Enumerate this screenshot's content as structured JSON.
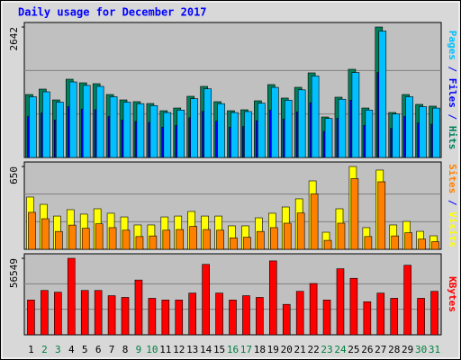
{
  "title": "Daily usage for December 2017",
  "legend_separator": " / ",
  "chart_data": [
    {
      "type": "bar",
      "ylim": [
        0,
        2642
      ],
      "yticks": [
        2642
      ],
      "series": [
        {
          "name": "Hits",
          "color": "#00805c",
          "values": [
            1275,
            1385,
            1166,
            1585,
            1512,
            1494,
            1275,
            1166,
            1130,
            1093,
            947,
            1002,
            1239,
            1439,
            1130,
            947,
            966,
            1148,
            1476,
            1203,
            1421,
            1713,
            820,
            1221,
            1786,
            1002,
            2642,
            911,
            1275,
            1075,
            1039
          ]
        },
        {
          "name": "Files",
          "color": "#0000ff",
          "values": [
            830,
            900,
            760,
            1030,
            980,
            970,
            830,
            760,
            730,
            710,
            615,
            650,
            805,
            935,
            735,
            615,
            630,
            745,
            960,
            780,
            925,
            1110,
            530,
            795,
            1160,
            650,
            1720,
            590,
            830,
            700,
            675
          ]
        },
        {
          "name": "Pages",
          "color": "#00c0ff",
          "values": [
            1230,
            1330,
            1120,
            1530,
            1460,
            1440,
            1230,
            1120,
            1090,
            1050,
            910,
            960,
            1190,
            1390,
            1090,
            910,
            930,
            1100,
            1420,
            1160,
            1370,
            1650,
            790,
            1180,
            1720,
            960,
            2560,
            880,
            1230,
            1030,
            1000
          ]
        }
      ]
    },
    {
      "type": "bar",
      "ylim": [
        0,
        650
      ],
      "yticks": [
        650
      ],
      "series": [
        {
          "name": "Visits",
          "color": "#ffff00",
          "values": [
            410,
            353,
            261,
            311,
            276,
            318,
            283,
            254,
            191,
            191,
            254,
            261,
            297,
            261,
            261,
            184,
            184,
            247,
            283,
            332,
            396,
            537,
            134,
            318,
            650,
            170,
            622,
            191,
            219,
            141,
            106
          ]
        },
        {
          "name": "Sites",
          "color": "#ff8000",
          "values": [
            290,
            240,
            140,
            190,
            165,
            200,
            170,
            150,
            100,
            105,
            150,
            155,
            180,
            155,
            150,
            90,
            95,
            140,
            170,
            205,
            285,
            435,
            70,
            205,
            555,
            100,
            530,
            105,
            130,
            80,
            60
          ]
        }
      ]
    },
    {
      "type": "bar",
      "ylim": [
        0,
        56549
      ],
      "yticks": [
        56549
      ],
      "categories": [
        "1",
        "2",
        "3",
        "4",
        "5",
        "6",
        "7",
        "8",
        "9",
        "10",
        "11",
        "12",
        "13",
        "14",
        "15",
        "16",
        "17",
        "18",
        "19",
        "20",
        "21",
        "22",
        "23",
        "24",
        "25",
        "26",
        "27",
        "28",
        "29",
        "30",
        "31"
      ],
      "category_colors": [
        "#000000",
        "#008040",
        "#008040",
        "#000000",
        "#000000",
        "#000000",
        "#000000",
        "#000000",
        "#008040",
        "#008040",
        "#000000",
        "#000000",
        "#000000",
        "#000000",
        "#000000",
        "#008040",
        "#008040",
        "#000000",
        "#000000",
        "#000000",
        "#000000",
        "#000000",
        "#008040",
        "#008040",
        "#000000",
        "#000000",
        "#000000",
        "#000000",
        "#000000",
        "#008040",
        "#008040"
      ],
      "series": [
        {
          "name": "KBytes",
          "color": "#ff0000",
          "values": [
            25704,
            32773,
            31487,
            56549,
            32773,
            32773,
            28917,
            27632,
            40484,
            26989,
            25704,
            25704,
            30845,
            52051,
            30845,
            25704,
            28917,
            27632,
            54621,
            22491,
            32130,
            37914,
            25704,
            48838,
            41769,
            24419,
            30845,
            26989,
            51408,
            26989,
            32130
          ]
        }
      ]
    }
  ]
}
